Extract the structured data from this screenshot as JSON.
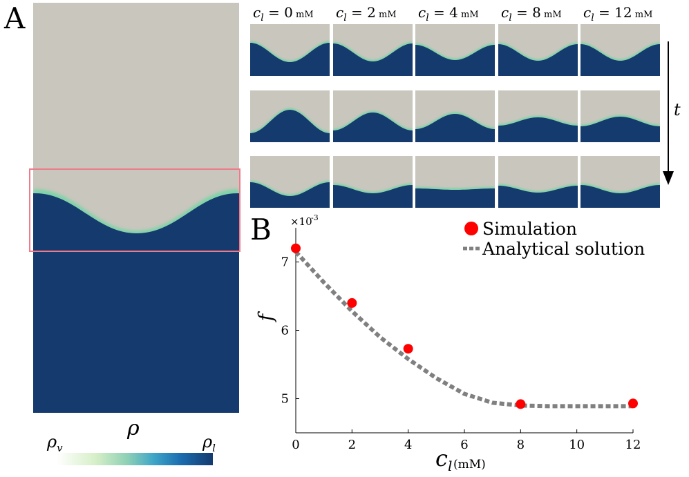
{
  "panels": {
    "a_label": "A",
    "b_label": "B"
  },
  "colorbar": {
    "title": "ρ",
    "left_label": "ρ",
    "left_sub": "v",
    "right_label": "ρ",
    "right_sub": "l"
  },
  "snapshots": {
    "columns": [
      {
        "sym": "c",
        "sub": "l",
        "eq": " = 0",
        "unit": "mM"
      },
      {
        "sym": "c",
        "sub": "l",
        "eq": " = 2",
        "unit": "mM"
      },
      {
        "sym": "c",
        "sub": "l",
        "eq": " = 4",
        "unit": "mM"
      },
      {
        "sym": "c",
        "sub": "l",
        "eq": " = 8",
        "unit": "mM"
      },
      {
        "sym": "c",
        "sub": "l",
        "eq": " = 12",
        "unit": "mM"
      }
    ],
    "time_label": "t"
  },
  "colors": {
    "vapor": "#c9c6bd",
    "liquid": "#143a6e",
    "highlight_box": "#f07a8a",
    "sim_marker": "#ff0000",
    "analytical_line": "#808080"
  },
  "chart_data": {
    "type": "scatter",
    "xlabel": "c",
    "xlabel_sub": "l",
    "xlabel_unit": "(mM)",
    "ylabel": "f",
    "y_scale_note": "×10",
    "y_scale_exp": "-3",
    "xlim": [
      0,
      12
    ],
    "ylim": [
      4.5,
      7.5
    ],
    "xticks": [
      0,
      2,
      4,
      6,
      8,
      10,
      12
    ],
    "yticks": [
      5,
      6,
      7
    ],
    "legend_position": "top-right",
    "series": [
      {
        "name": "Simulation",
        "kind": "markers",
        "x": [
          0,
          2,
          4,
          8,
          12
        ],
        "y": [
          7.2,
          6.4,
          5.73,
          4.92,
          4.93
        ]
      },
      {
        "name": "Analytical solution",
        "kind": "dashed-line",
        "x": [
          0,
          1,
          2,
          3,
          4,
          5,
          6,
          7,
          8,
          9,
          10,
          11,
          12
        ],
        "y": [
          7.15,
          6.7,
          6.28,
          5.9,
          5.58,
          5.3,
          5.07,
          4.94,
          4.9,
          4.89,
          4.89,
          4.89,
          4.89
        ]
      }
    ]
  }
}
